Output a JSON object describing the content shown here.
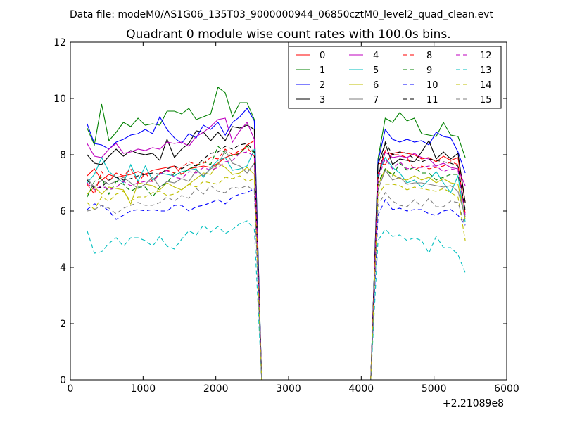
{
  "chart_data": {
    "type": "line",
    "suptitle": "Data file: modeM0/AS1G06_135T03_9000000944_06850cztM0_level2_quad_clean.evt",
    "title": "Quadrant 0 module wise count rates with 100.0s bins.",
    "xlabel": "",
    "ylabel": "",
    "x_offset_label": "+2.21089e8",
    "xlim": [
      0,
      6000
    ],
    "ylim": [
      0,
      12
    ],
    "x_ticks": [
      0,
      1000,
      2000,
      3000,
      4000,
      5000,
      6000
    ],
    "y_ticks": [
      0,
      2,
      4,
      6,
      8,
      10,
      12
    ],
    "legend_position": "top-right",
    "legend_columns": 4,
    "gap": [
      2650,
      4120
    ],
    "x": [
      [
        230,
        330,
        430,
        530,
        630,
        730,
        830,
        930,
        1030,
        1130,
        1230,
        1330,
        1430,
        1530,
        1630,
        1730,
        1830,
        1930,
        2030,
        2130,
        2230,
        2330,
        2430,
        2530,
        2630
      ],
      [
        4130,
        4230,
        4330,
        4430,
        4530,
        4630,
        4730,
        4830,
        4930,
        5030,
        5130,
        5230,
        5330,
        5430
      ]
    ],
    "series": [
      {
        "name": "0",
        "color": "#ff0000",
        "dashed": false,
        "values": [
          [
            7.25,
            7.5,
            7.1,
            7.3,
            7.2,
            7.25,
            7.3,
            7.4,
            7.3,
            7.45,
            7.5,
            7.55,
            7.6,
            7.3,
            7.5,
            7.55,
            7.6,
            7.55,
            7.7,
            7.9,
            8.0,
            8.05,
            8.35,
            8.5,
            0
          ],
          [
            0,
            7.7,
            7.65,
            8.05,
            8.1,
            8.05,
            8.0,
            7.85,
            7.9,
            7.75,
            7.95,
            7.8,
            7.9,
            6.3
          ]
        ]
      },
      {
        "name": "1",
        "color": "#008000",
        "dashed": false,
        "values": [
          [
            8.95,
            8.35,
            9.8,
            8.5,
            8.8,
            9.15,
            9.0,
            9.3,
            9.05,
            9.1,
            9.05,
            9.55,
            9.55,
            9.45,
            9.65,
            9.25,
            9.35,
            9.45,
            10.4,
            10.2,
            9.35,
            9.85,
            9.85,
            9.25,
            0
          ],
          [
            0,
            7.85,
            9.3,
            9.15,
            9.5,
            9.2,
            9.3,
            8.75,
            8.7,
            8.65,
            9.15,
            8.7,
            8.65,
            7.9
          ]
        ]
      },
      {
        "name": "2",
        "color": "#0000ff",
        "dashed": false,
        "values": [
          [
            9.1,
            8.4,
            8.35,
            8.2,
            8.45,
            8.55,
            8.7,
            8.75,
            8.9,
            8.75,
            9.35,
            8.9,
            8.6,
            8.4,
            8.75,
            8.6,
            9.05,
            8.9,
            9.15,
            8.7,
            9.15,
            9.35,
            9.65,
            9.2,
            0
          ],
          [
            0,
            7.75,
            8.9,
            8.55,
            8.45,
            8.55,
            8.45,
            8.5,
            8.35,
            8.8,
            8.65,
            8.6,
            8.1,
            7.35
          ]
        ]
      },
      {
        "name": "3",
        "color": "#000000",
        "dashed": false,
        "values": [
          [
            8.0,
            7.7,
            7.65,
            7.95,
            8.2,
            7.95,
            8.15,
            8.05,
            8.0,
            8.05,
            7.8,
            8.55,
            7.9,
            8.2,
            8.4,
            8.85,
            8.8,
            8.5,
            8.8,
            8.5,
            9.0,
            8.95,
            9.05,
            8.9,
            0
          ],
          [
            0,
            7.65,
            8.4,
            7.65,
            7.85,
            7.8,
            7.75,
            8.1,
            8.5,
            7.85,
            8.1,
            7.85,
            8.05,
            6.3
          ]
        ]
      },
      {
        "name": "4",
        "color": "#bf00bf",
        "dashed": false,
        "values": [
          [
            8.4,
            7.95,
            7.9,
            8.2,
            8.4,
            8.05,
            8.1,
            8.2,
            8.15,
            8.25,
            8.2,
            8.45,
            8.4,
            8.45,
            8.3,
            8.65,
            8.8,
            9.0,
            9.25,
            9.3,
            8.45,
            8.85,
            9.15,
            8.55,
            0
          ],
          [
            0,
            7.2,
            8.1,
            7.9,
            7.95,
            7.9,
            8.05,
            7.9,
            7.85,
            7.6,
            7.7,
            7.55,
            7.5,
            6.9
          ]
        ]
      },
      {
        "name": "5",
        "color": "#00bfbf",
        "dashed": false,
        "values": [
          [
            7.0,
            7.3,
            7.9,
            7.4,
            7.2,
            7.0,
            7.65,
            7.05,
            7.6,
            7.1,
            7.35,
            7.3,
            7.25,
            7.4,
            7.45,
            7.5,
            7.2,
            7.55,
            7.8,
            7.9,
            7.45,
            7.5,
            7.6,
            8.2,
            0
          ],
          [
            0,
            7.3,
            7.9,
            7.55,
            7.35,
            7.0,
            7.1,
            6.85,
            7.1,
            7.4,
            7.0,
            6.65,
            7.25,
            5.6
          ]
        ]
      },
      {
        "name": "6",
        "color": "#bfbf00",
        "dashed": false,
        "values": [
          [
            6.6,
            6.85,
            6.6,
            6.85,
            6.8,
            6.75,
            6.25,
            7.0,
            6.95,
            6.9,
            6.75,
            7.0,
            6.85,
            6.75,
            6.95,
            7.15,
            7.35,
            7.3,
            7.7,
            7.55,
            7.3,
            7.35,
            7.55,
            7.3,
            0
          ],
          [
            0,
            6.9,
            7.5,
            7.3,
            7.15,
            7.1,
            7.25,
            7.1,
            7.2,
            7.0,
            7.15,
            7.0,
            6.95,
            5.7
          ]
        ]
      },
      {
        "name": "7",
        "color": "#7f7f7f",
        "dashed": false,
        "values": [
          [
            7.15,
            6.85,
            7.1,
            6.95,
            7.05,
            7.2,
            7.0,
            6.8,
            6.95,
            7.2,
            6.85,
            7.05,
            7.0,
            7.15,
            7.05,
            7.45,
            7.25,
            7.5,
            7.65,
            8.15,
            7.7,
            7.6,
            7.35,
            7.7,
            0
          ],
          [
            0,
            6.75,
            7.45,
            7.1,
            7.2,
            6.95,
            7.0,
            7.0,
            6.95,
            6.9,
            6.85,
            6.9,
            6.7,
            5.8
          ]
        ]
      },
      {
        "name": "8",
        "color": "#ff0000",
        "dashed": true,
        "values": [
          [
            6.95,
            6.6,
            7.4,
            7.05,
            7.35,
            7.25,
            7.5,
            7.0,
            7.35,
            7.05,
            7.35,
            7.45,
            7.35,
            7.55,
            7.75,
            7.65,
            7.7,
            7.9,
            7.85,
            8.2,
            8.0,
            8.15,
            8.25,
            7.95,
            0
          ],
          [
            0,
            7.3,
            8.15,
            8.0,
            8.0,
            7.9,
            7.45,
            7.6,
            7.5,
            7.55,
            7.6,
            7.75,
            7.65,
            5.9
          ]
        ]
      },
      {
        "name": "9",
        "color": "#008000",
        "dashed": true,
        "values": [
          [
            6.5,
            7.05,
            7.2,
            6.6,
            7.05,
            6.95,
            6.7,
            6.85,
            6.85,
            6.5,
            6.85,
            7.0,
            7.35,
            7.3,
            7.5,
            7.6,
            7.75,
            7.65,
            8.3,
            8.05,
            7.95,
            8.05,
            8.3,
            8.05,
            0
          ],
          [
            0,
            7.0,
            7.5,
            7.25,
            7.7,
            7.45,
            7.55,
            7.35,
            7.35,
            7.1,
            7.2,
            7.3,
            7.3,
            6.05
          ]
        ]
      },
      {
        "name": "10",
        "color": "#0000ff",
        "dashed": true,
        "values": [
          [
            6.05,
            6.25,
            6.2,
            6.0,
            5.7,
            5.85,
            6.0,
            6.05,
            6.0,
            6.05,
            6.0,
            6.0,
            6.2,
            6.2,
            6.0,
            6.15,
            6.2,
            6.3,
            6.4,
            6.25,
            6.5,
            6.6,
            6.65,
            6.8,
            0
          ],
          [
            0,
            5.85,
            6.4,
            6.05,
            6.1,
            6.0,
            6.05,
            6.05,
            5.9,
            5.85,
            6.0,
            6.05,
            5.85,
            5.5
          ]
        ]
      },
      {
        "name": "11",
        "color": "#000000",
        "dashed": true,
        "values": [
          [
            7.1,
            6.8,
            6.85,
            7.1,
            7.2,
            7.1,
            7.15,
            7.25,
            7.3,
            7.35,
            7.3,
            7.5,
            7.6,
            7.5,
            7.65,
            7.6,
            7.85,
            8.05,
            8.1,
            8.3,
            8.2,
            8.35,
            8.4,
            8.1,
            0
          ],
          [
            0,
            7.1,
            8.45,
            8.0,
            8.1,
            8.05,
            7.85,
            7.75,
            7.85,
            7.8,
            7.75,
            7.7,
            7.6,
            6.0
          ]
        ]
      },
      {
        "name": "12",
        "color": "#bf00bf",
        "dashed": true,
        "values": [
          [
            7.0,
            6.75,
            6.9,
            6.75,
            6.85,
            7.05,
            6.9,
            7.0,
            7.05,
            7.05,
            7.3,
            7.45,
            7.2,
            7.15,
            7.4,
            7.35,
            7.55,
            7.45,
            7.55,
            7.75,
            7.8,
            8.05,
            8.1,
            7.95,
            0
          ],
          [
            0,
            7.15,
            7.85,
            7.5,
            7.75,
            7.5,
            7.55,
            7.55,
            7.6,
            7.6,
            7.4,
            7.5,
            7.45,
            5.85
          ]
        ]
      },
      {
        "name": "13",
        "color": "#00bfbf",
        "dashed": true,
        "values": [
          [
            5.3,
            4.5,
            4.55,
            4.85,
            5.05,
            4.75,
            5.05,
            5.05,
            4.95,
            4.75,
            5.1,
            4.75,
            4.65,
            5.0,
            5.3,
            5.15,
            5.5,
            5.25,
            5.45,
            5.2,
            5.35,
            5.55,
            5.65,
            5.35,
            0
          ],
          [
            0,
            4.95,
            5.35,
            5.1,
            5.15,
            4.95,
            5.05,
            4.95,
            4.5,
            5.1,
            4.7,
            4.7,
            4.45,
            3.8
          ]
        ]
      },
      {
        "name": "14",
        "color": "#bfbf00",
        "dashed": true,
        "values": [
          [
            6.3,
            6.05,
            6.5,
            6.35,
            6.6,
            6.7,
            6.35,
            6.5,
            6.5,
            6.65,
            6.7,
            6.55,
            6.6,
            6.75,
            6.95,
            6.85,
            7.05,
            7.0,
            6.95,
            7.2,
            7.15,
            7.25,
            7.05,
            7.15,
            0
          ],
          [
            0,
            6.55,
            6.95,
            6.95,
            6.9,
            6.75,
            6.85,
            6.8,
            6.75,
            6.7,
            6.8,
            6.65,
            6.5,
            4.95
          ]
        ]
      },
      {
        "name": "15",
        "color": "#7f7f7f",
        "dashed": true,
        "values": [
          [
            6.0,
            6.05,
            6.2,
            6.1,
            5.9,
            6.1,
            6.2,
            6.3,
            6.2,
            6.2,
            6.3,
            6.5,
            6.35,
            6.55,
            6.45,
            6.8,
            6.6,
            6.9,
            6.7,
            6.65,
            6.85,
            6.8,
            6.9,
            6.7,
            0
          ],
          [
            0,
            6.2,
            6.65,
            6.35,
            6.2,
            6.15,
            6.4,
            6.15,
            6.45,
            6.15,
            6.15,
            6.35,
            6.3,
            5.45
          ]
        ]
      }
    ]
  }
}
